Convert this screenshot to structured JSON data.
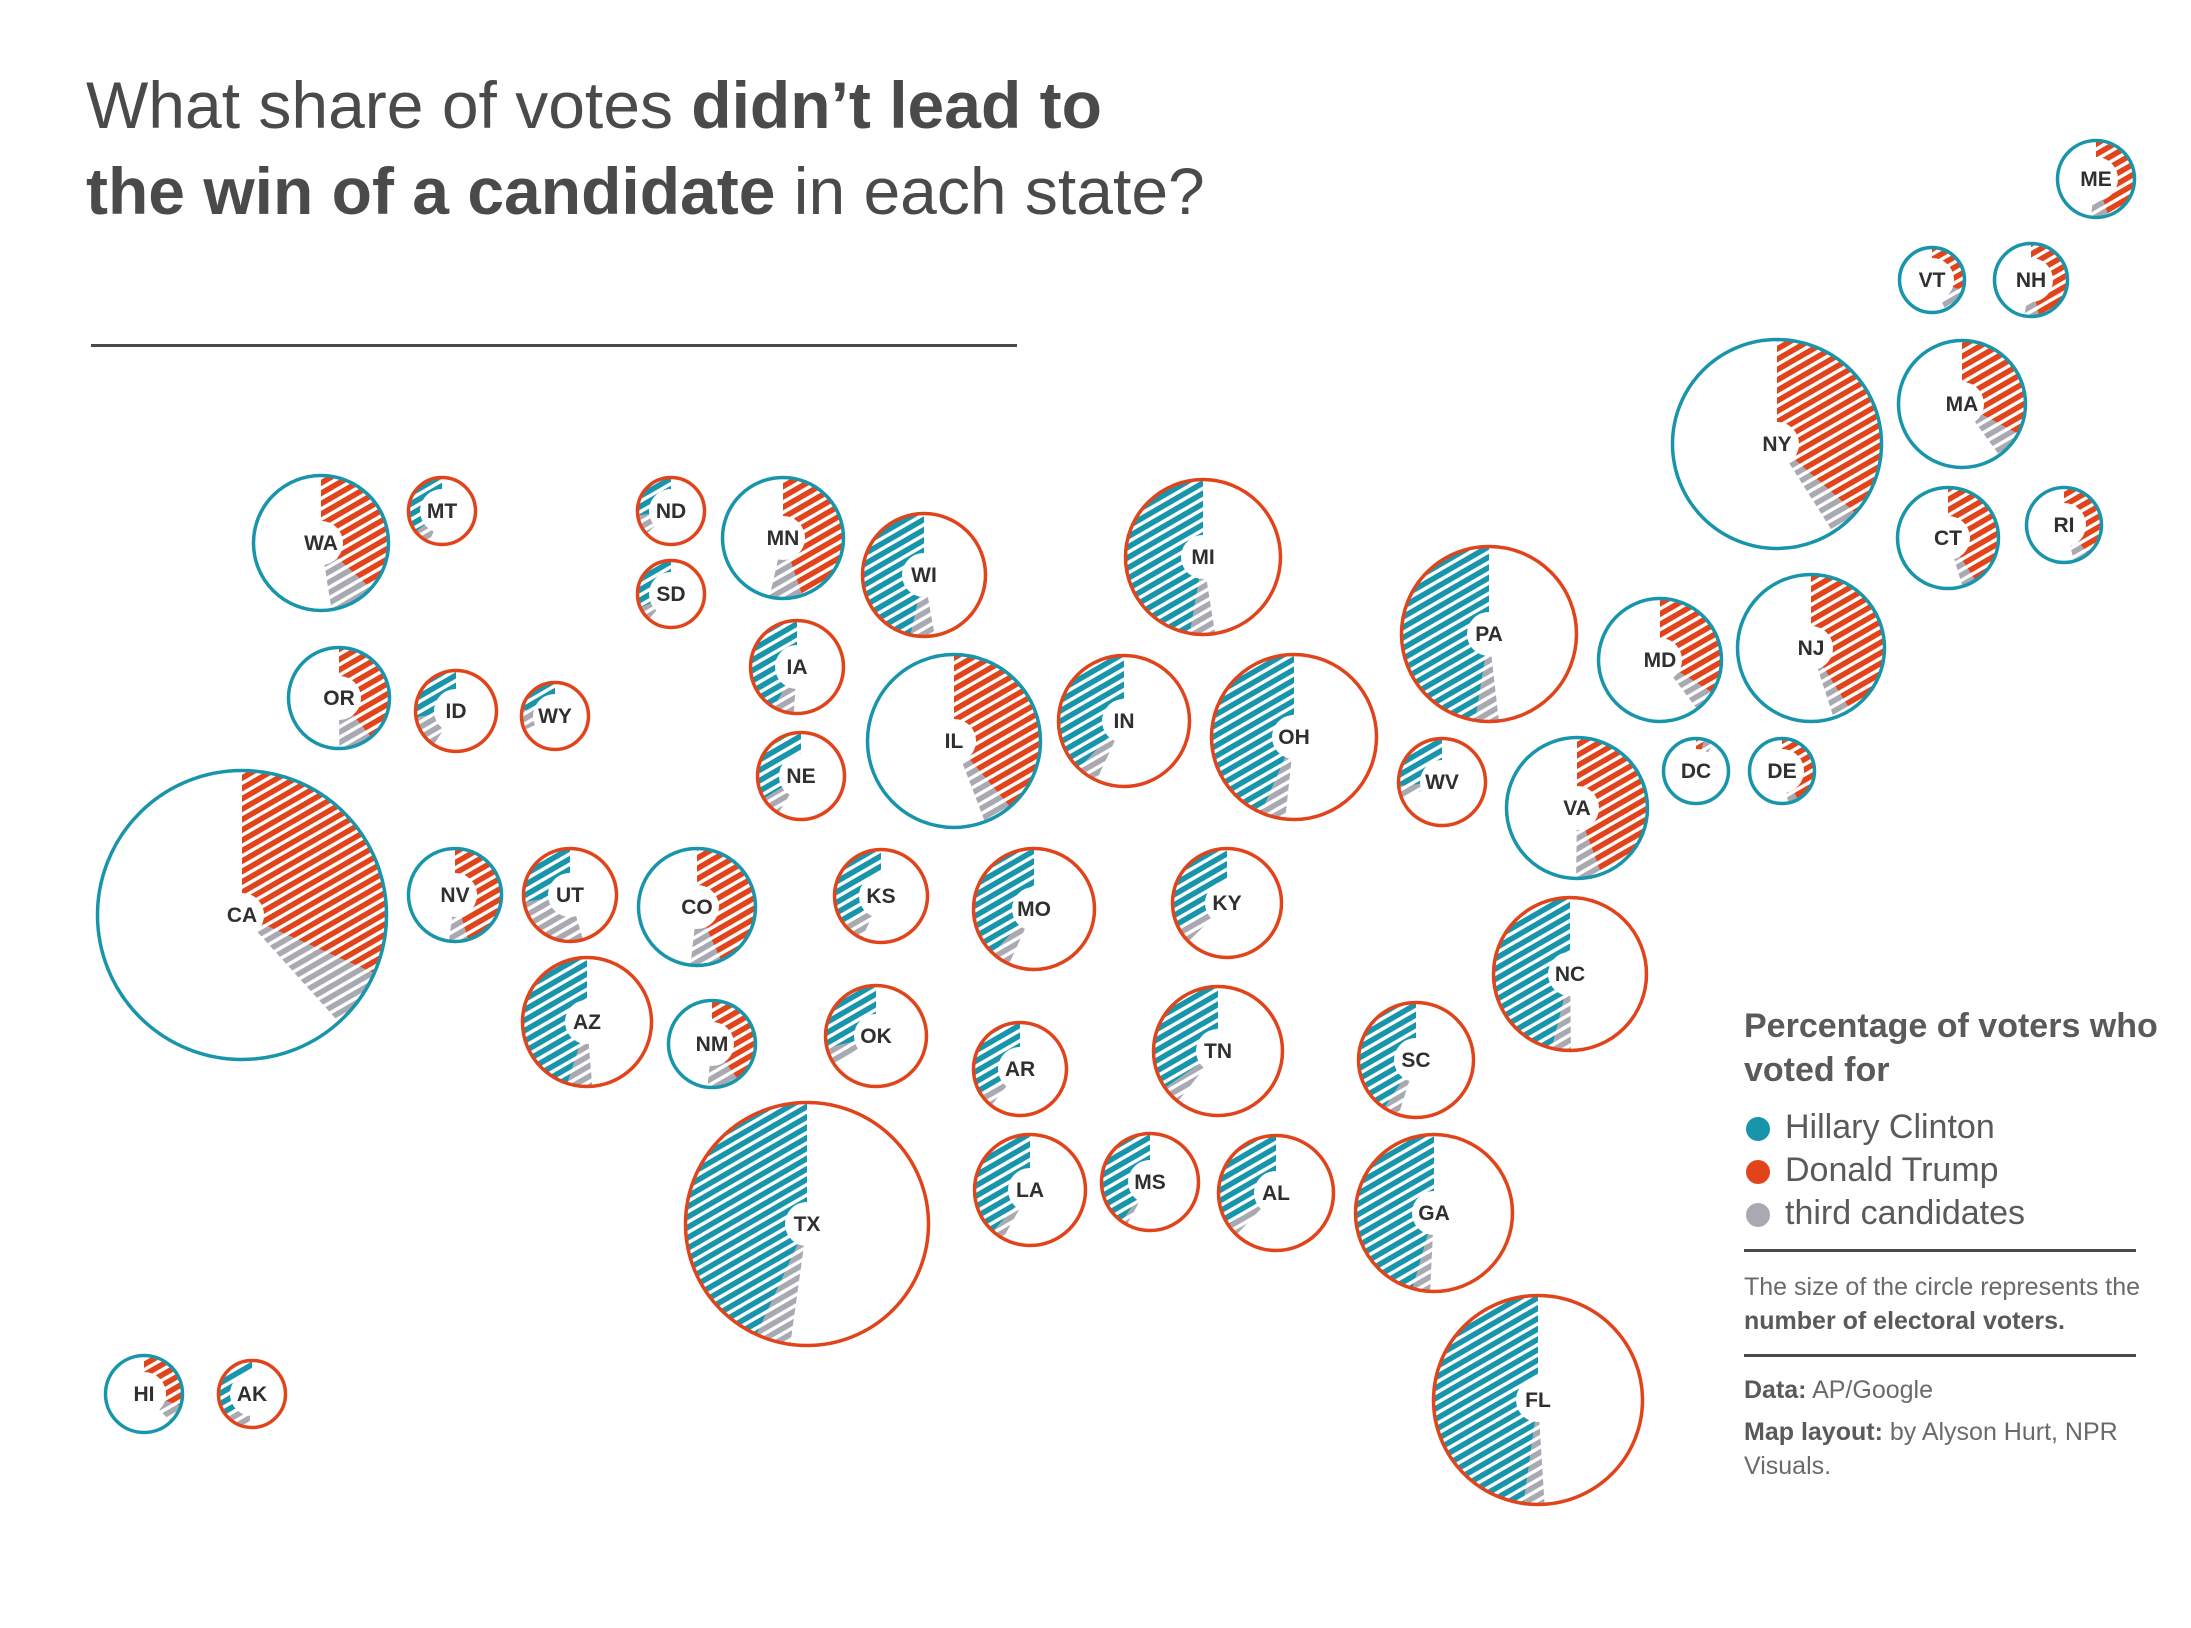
{
  "title": {
    "part1": "What share of votes ",
    "bold1": "didn’t lead to",
    "bold2": "the win of a candidate",
    "part2": " in each state?"
  },
  "colors": {
    "clinton": "#1895ab",
    "trump": "#e1431a",
    "third": "#a9a9b2"
  },
  "legend": {
    "title": "Percentage of voters who voted for",
    "items": [
      {
        "label": "Hillary Clinton",
        "color": "#1895ab"
      },
      {
        "label": "Donald Trump",
        "color": "#e1431a"
      },
      {
        "label": "third candidates",
        "color": "#a9a9b2"
      }
    ],
    "size_note_prefix": "The size of the circle represents the ",
    "size_note_bold": "number of electoral voters.",
    "data_label": "Data:",
    "data_value": " AP/Google",
    "layout_label": "Map layout:",
    "layout_value": " by Alyson Hurt, NPR Visuals."
  },
  "states": [
    {
      "abbr": "ME",
      "winner": "clinton",
      "clinton": 47.8,
      "trump": 44.9,
      "third": 7.3
    },
    {
      "abbr": "VT",
      "winner": "clinton",
      "clinton": 56.7,
      "trump": 30.3,
      "third": 13.0
    },
    {
      "abbr": "NH",
      "winner": "clinton",
      "clinton": 47.0,
      "trump": 46.6,
      "third": 6.4
    },
    {
      "abbr": "NY",
      "winner": "clinton",
      "clinton": 59.0,
      "trump": 36.5,
      "third": 4.5
    },
    {
      "abbr": "MA",
      "winner": "clinton",
      "clinton": 60.0,
      "trump": 32.8,
      "third": 7.2
    },
    {
      "abbr": "CT",
      "winner": "clinton",
      "clinton": 54.6,
      "trump": 40.9,
      "third": 4.5
    },
    {
      "abbr": "RI",
      "winner": "clinton",
      "clinton": 54.4,
      "trump": 38.9,
      "third": 6.7
    },
    {
      "abbr": "MD",
      "winner": "clinton",
      "clinton": 60.3,
      "trump": 33.9,
      "third": 5.8
    },
    {
      "abbr": "NJ",
      "winner": "clinton",
      "clinton": 55.0,
      "trump": 41.0,
      "third": 4.0
    },
    {
      "abbr": "DC",
      "winner": "clinton",
      "clinton": 90.9,
      "trump": 4.1,
      "third": 5.0
    },
    {
      "abbr": "DE",
      "winner": "clinton",
      "clinton": 53.1,
      "trump": 41.9,
      "third": 5.0
    },
    {
      "abbr": "PA",
      "winner": "trump",
      "clinton": 47.5,
      "trump": 48.2,
      "third": 4.3
    },
    {
      "abbr": "VA",
      "winner": "clinton",
      "clinton": 49.8,
      "trump": 44.4,
      "third": 5.8
    },
    {
      "abbr": "WV",
      "winner": "trump",
      "clinton": 26.5,
      "trump": 68.6,
      "third": 4.9
    },
    {
      "abbr": "NC",
      "winner": "trump",
      "clinton": 46.2,
      "trump": 49.8,
      "third": 4.0
    },
    {
      "abbr": "MI",
      "winner": "trump",
      "clinton": 47.3,
      "trump": 47.5,
      "third": 5.2
    },
    {
      "abbr": "OH",
      "winner": "trump",
      "clinton": 43.5,
      "trump": 51.7,
      "third": 4.8
    },
    {
      "abbr": "IN",
      "winner": "trump",
      "clinton": 37.9,
      "trump": 56.9,
      "third": 5.2
    },
    {
      "abbr": "KY",
      "winner": "trump",
      "clinton": 32.7,
      "trump": 62.5,
      "third": 4.8
    },
    {
      "abbr": "TN",
      "winner": "trump",
      "clinton": 34.7,
      "trump": 60.7,
      "third": 4.6
    },
    {
      "abbr": "SC",
      "winner": "trump",
      "clinton": 40.7,
      "trump": 54.9,
      "third": 4.4
    },
    {
      "abbr": "GA",
      "winner": "trump",
      "clinton": 45.6,
      "trump": 50.8,
      "third": 3.6
    },
    {
      "abbr": "FL",
      "winner": "trump",
      "clinton": 47.8,
      "trump": 49.0,
      "third": 3.2
    },
    {
      "abbr": "AL",
      "winner": "trump",
      "clinton": 34.4,
      "trump": 62.1,
      "third": 3.5
    },
    {
      "abbr": "MS",
      "winner": "trump",
      "clinton": 40.1,
      "trump": 57.9,
      "third": 2.0
    },
    {
      "abbr": "LA",
      "winner": "trump",
      "clinton": 38.4,
      "trump": 58.1,
      "third": 3.5
    },
    {
      "abbr": "AR",
      "winner": "trump",
      "clinton": 33.7,
      "trump": 60.6,
      "third": 5.7
    },
    {
      "abbr": "MO",
      "winner": "trump",
      "clinton": 38.1,
      "trump": 56.8,
      "third": 5.1
    },
    {
      "abbr": "IL",
      "winner": "clinton",
      "clinton": 55.8,
      "trump": 38.8,
      "third": 5.4
    },
    {
      "abbr": "WI",
      "winner": "trump",
      "clinton": 46.5,
      "trump": 47.2,
      "third": 6.3
    },
    {
      "abbr": "MN",
      "winner": "clinton",
      "clinton": 46.4,
      "trump": 44.9,
      "third": 8.7
    },
    {
      "abbr": "IA",
      "winner": "trump",
      "clinton": 41.7,
      "trump": 51.1,
      "third": 7.2
    },
    {
      "abbr": "NE",
      "winner": "trump",
      "clinton": 33.7,
      "trump": 58.7,
      "third": 7.6
    },
    {
      "abbr": "KS",
      "winner": "trump",
      "clinton": 36.1,
      "trump": 56.7,
      "third": 7.2
    },
    {
      "abbr": "OK",
      "winner": "trump",
      "clinton": 28.9,
      "trump": 65.3,
      "third": 5.8
    },
    {
      "abbr": "TX",
      "winner": "trump",
      "clinton": 43.2,
      "trump": 52.2,
      "third": 4.6
    },
    {
      "abbr": "ND",
      "winner": "trump",
      "clinton": 27.2,
      "trump": 63.0,
      "third": 9.8
    },
    {
      "abbr": "SD",
      "winner": "trump",
      "clinton": 31.7,
      "trump": 61.5,
      "third": 6.8
    },
    {
      "abbr": "MT",
      "winner": "trump",
      "clinton": 35.7,
      "trump": 56.2,
      "third": 8.1
    },
    {
      "abbr": "WY",
      "winner": "trump",
      "clinton": 21.9,
      "trump": 68.2,
      "third": 9.9
    },
    {
      "abbr": "CO",
      "winner": "clinton",
      "clinton": 48.2,
      "trump": 43.3,
      "third": 8.5
    },
    {
      "abbr": "NM",
      "winner": "clinton",
      "clinton": 48.3,
      "trump": 40.0,
      "third": 11.7
    },
    {
      "abbr": "AZ",
      "winner": "trump",
      "clinton": 45.1,
      "trump": 48.7,
      "third": 6.2
    },
    {
      "abbr": "UT",
      "winner": "trump",
      "clinton": 27.5,
      "trump": 45.5,
      "third": 27.0
    },
    {
      "abbr": "NV",
      "winner": "clinton",
      "clinton": 47.9,
      "trump": 45.5,
      "third": 6.6
    },
    {
      "abbr": "ID",
      "winner": "trump",
      "clinton": 27.5,
      "trump": 59.3,
      "third": 13.2
    },
    {
      "abbr": "OR",
      "winner": "clinton",
      "clinton": 50.1,
      "trump": 39.1,
      "third": 10.8
    },
    {
      "abbr": "WA",
      "winner": "clinton",
      "clinton": 52.5,
      "trump": 36.8,
      "third": 10.7
    },
    {
      "abbr": "CA",
      "winner": "clinton",
      "clinton": 61.7,
      "trump": 31.6,
      "third": 6.7
    },
    {
      "abbr": "HI",
      "winner": "clinton",
      "clinton": 62.2,
      "trump": 30.0,
      "third": 7.8
    },
    {
      "abbr": "AK",
      "winner": "trump",
      "clinton": 36.6,
      "trump": 51.3,
      "third": 12.1
    }
  ]
}
